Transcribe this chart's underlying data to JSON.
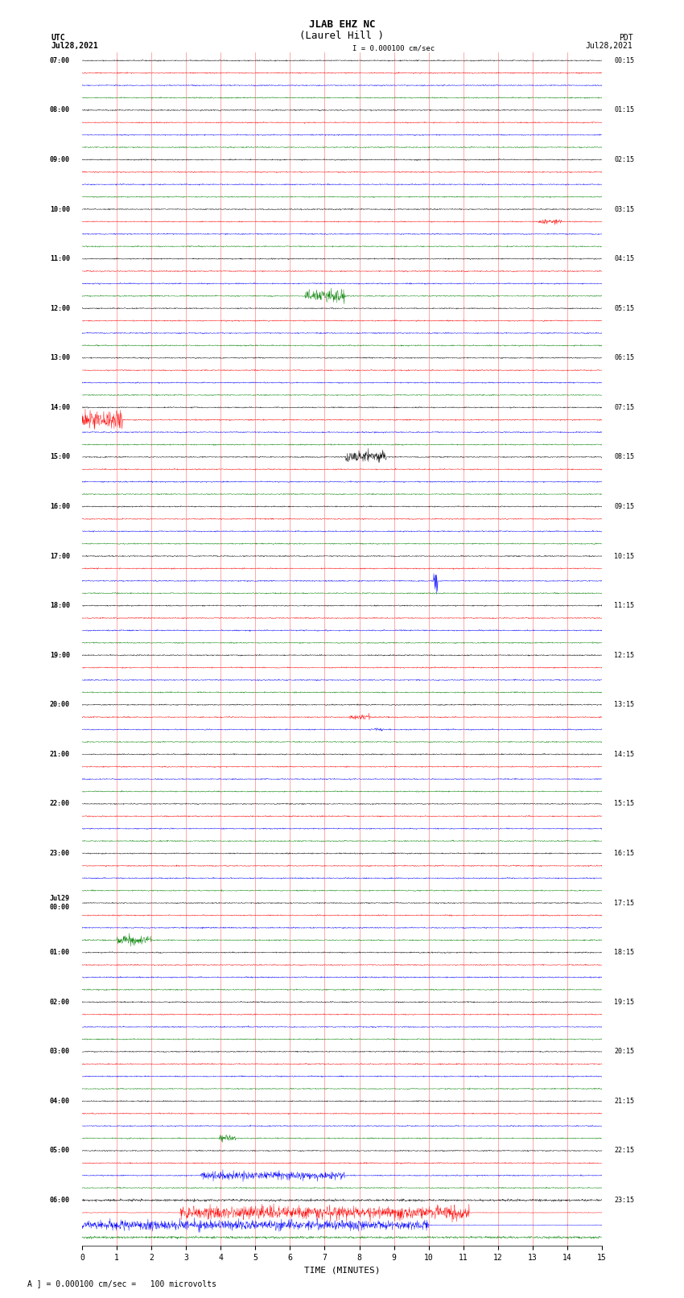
{
  "title_line1": "JLAB EHZ NC",
  "title_line2": "(Laurel Hill )",
  "scale_text": "I = 0.000100 cm/sec",
  "left_label_line1": "UTC",
  "left_label_line2": "Jul28,2021",
  "right_label_line1": "PDT",
  "right_label_line2": "Jul28,2021",
  "bottom_label": "A ] = 0.000100 cm/sec =   100 microvolts",
  "xlabel": "TIME (MINUTES)",
  "left_times": [
    "07:00",
    "08:00",
    "09:00",
    "10:00",
    "11:00",
    "12:00",
    "13:00",
    "14:00",
    "15:00",
    "16:00",
    "17:00",
    "18:00",
    "19:00",
    "20:00",
    "21:00",
    "22:00",
    "23:00",
    "Jul29\n00:00",
    "01:00",
    "02:00",
    "03:00",
    "04:00",
    "05:00",
    "06:00"
  ],
  "right_times": [
    "00:15",
    "01:15",
    "02:15",
    "03:15",
    "04:15",
    "05:15",
    "06:15",
    "07:15",
    "08:15",
    "09:15",
    "10:15",
    "11:15",
    "12:15",
    "13:15",
    "14:15",
    "15:15",
    "16:15",
    "17:15",
    "18:15",
    "19:15",
    "20:15",
    "21:15",
    "22:15",
    "23:15"
  ],
  "n_rows": 24,
  "traces_per_row": 4,
  "time_minutes": 15,
  "colors": [
    "black",
    "red",
    "blue",
    "green"
  ],
  "bg_color": "white",
  "noise_scale": 0.07,
  "seed": 42
}
